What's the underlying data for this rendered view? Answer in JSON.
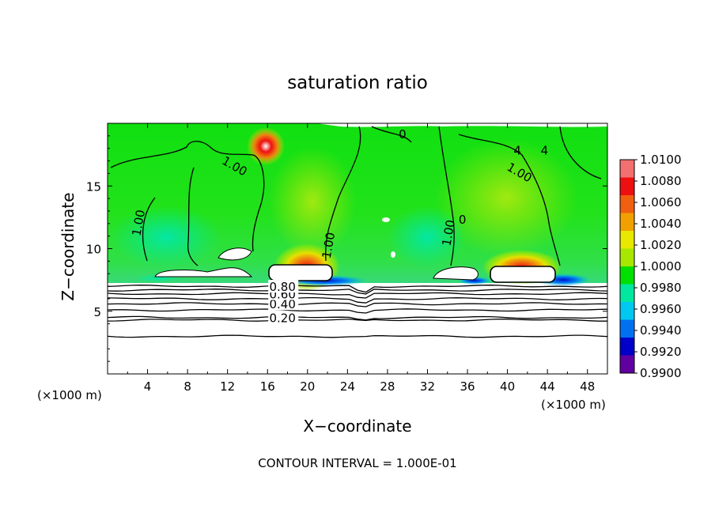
{
  "chart_data": {
    "type": "heatmap",
    "title": "saturation ratio",
    "xlabel": "X−coordinate",
    "ylabel": "Z−coordinate",
    "x_unit_left": "(×1000 m)",
    "x_unit_right": "(×1000 m)",
    "footer": "CONTOUR INTERVAL = 1.000E-01",
    "xlim": [
      0,
      50
    ],
    "ylim": [
      0,
      20
    ],
    "x_ticks": [
      4,
      8,
      12,
      16,
      20,
      24,
      28,
      32,
      36,
      40,
      44,
      48
    ],
    "y_ticks": [
      5,
      10,
      15
    ],
    "colorbar": {
      "min": 0.99,
      "max": 1.01,
      "levels": [
        "1.0100",
        "1.0080",
        "1.0060",
        "1.0040",
        "1.0020",
        "1.0000",
        "0.9980",
        "0.9960",
        "0.9940",
        "0.9920",
        "0.9900"
      ],
      "colors": [
        "#f27070",
        "#ee1010",
        "#f06010",
        "#f0a000",
        "#e8e800",
        "#a8e800",
        "#00e000",
        "#00e8a0",
        "#00c8f0",
        "#0070f0",
        "#0000c8",
        "#6000a0"
      ]
    },
    "cloud_base_height": 7.3,
    "ground_contours": [
      {
        "z": 3.0,
        "label": ""
      },
      {
        "z": 4.3,
        "label": ""
      },
      {
        "z": 4.5,
        "label": "0.20"
      },
      {
        "z": 5.1,
        "label": ""
      },
      {
        "z": 5.6,
        "label": "0.40"
      },
      {
        "z": 6.0,
        "label": ""
      },
      {
        "z": 6.4,
        "label": "0.60"
      },
      {
        "z": 6.7,
        "label": ""
      },
      {
        "z": 7.0,
        "label": "0.80"
      }
    ],
    "contour_labels": [
      {
        "text": "1.00",
        "x": 12.5,
        "z": 16.3
      },
      {
        "text": "1.00",
        "x": 3.5,
        "z": 12.0
      },
      {
        "text": "1.00",
        "x": 22.5,
        "z": 10.2
      },
      {
        "text": "1.00",
        "x": 34.5,
        "z": 11.2
      },
      {
        "text": "1.00",
        "x": 41.0,
        "z": 15.8
      },
      {
        "text": "0",
        "x": 29.5,
        "z": 18.8
      },
      {
        "text": "0",
        "x": 35.5,
        "z": 12.0
      },
      {
        "text": "4",
        "x": 43.7,
        "z": 17.5
      },
      {
        "text": "4",
        "x": 41.0,
        "z": 17.5
      }
    ],
    "peaks": [
      {
        "x": 20.0,
        "z": 8.8,
        "value": 1.008
      },
      {
        "x": 41.5,
        "z": 8.6,
        "value": 1.006
      },
      {
        "x": 16.0,
        "z": 18.2,
        "value": 1.009
      }
    ],
    "minima": [
      {
        "x": 22.0,
        "z": 7.5,
        "value": 0.993
      },
      {
        "x": 45.0,
        "z": 7.5,
        "value": 0.994
      }
    ]
  }
}
